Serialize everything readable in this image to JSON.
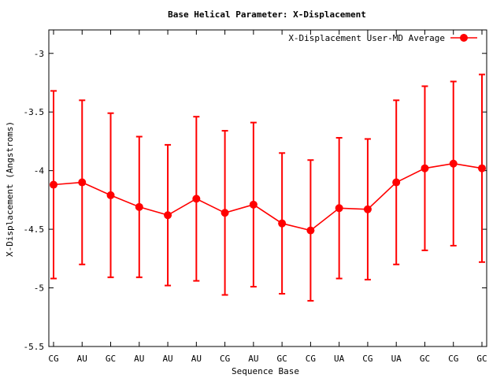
{
  "chart_data": {
    "type": "line",
    "title": "Base  Helical Parameter: X-Displacement",
    "xlabel": "Sequence Base",
    "ylabel": "X-Displacement (Angstroms)",
    "ylim": [
      -5.5,
      -2.8
    ],
    "yticks": [
      -5.5,
      -5,
      -4.5,
      -4,
      -3.5,
      -3
    ],
    "ytick_labels": [
      "-5.5",
      "-5",
      "-4.5",
      "-4",
      "-3.5",
      "-3"
    ],
    "categories": [
      "CG",
      "AU",
      "GC",
      "AU",
      "AU",
      "AU",
      "CG",
      "AU",
      "GC",
      "CG",
      "UA",
      "CG",
      "UA",
      "GC",
      "CG",
      "GC"
    ],
    "grid": false,
    "legend_position": "top-right",
    "series": [
      {
        "name": "X-Displacement User-MD Average",
        "color": "#ff0000",
        "values": [
          -4.12,
          -4.1,
          -4.21,
          -4.31,
          -4.38,
          -4.24,
          -4.36,
          -4.29,
          -4.45,
          -4.51,
          -4.32,
          -4.33,
          -4.1,
          -3.98,
          -3.94,
          -3.98
        ],
        "err_upper": [
          -3.32,
          -3.4,
          -3.51,
          -3.71,
          -3.78,
          -3.54,
          -3.66,
          -3.59,
          -3.85,
          -3.91,
          -3.72,
          -3.73,
          -3.4,
          -3.28,
          -3.24,
          -3.18
        ],
        "err_lower": [
          -4.92,
          -4.8,
          -4.91,
          -4.91,
          -4.98,
          -4.94,
          -5.06,
          -4.99,
          -5.05,
          -5.11,
          -4.92,
          -4.93,
          -4.8,
          -4.68,
          -4.64,
          -4.78
        ]
      }
    ]
  }
}
